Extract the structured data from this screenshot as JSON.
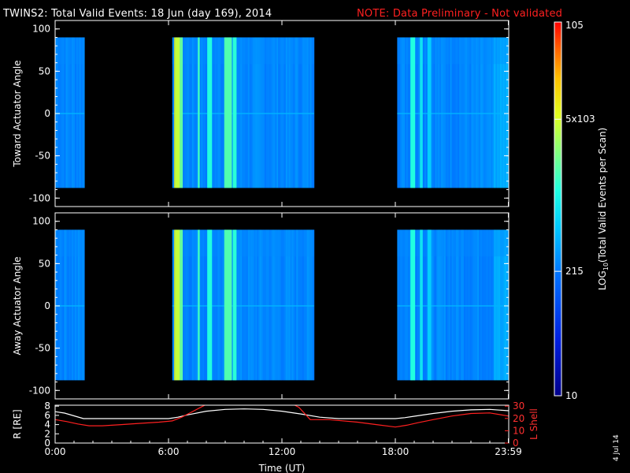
{
  "title": "TWINS2: Total Valid Events: 18 Jun (day 169), 2014",
  "note": "NOTE: Data Preliminary - Not validated",
  "date_stamp": "4 Jul 14",
  "chart_data": [
    {
      "type": "heatmap",
      "ylabel": "Toward Actuator Angle",
      "ylim": [
        -110,
        110
      ],
      "yticks": [
        -100,
        -50,
        0,
        50,
        100
      ],
      "xlim": [
        0,
        24
      ],
      "data_extent_y": [
        -88,
        90
      ],
      "data_segments_hours": [
        [
          0.0,
          1.55
        ],
        [
          6.2,
          13.7
        ],
        [
          18.1,
          24.0
        ]
      ],
      "hot_bands": [
        {
          "x": [
            6.3,
            6.35
          ],
          "level": 0.78
        },
        {
          "x": [
            6.35,
            6.6
          ],
          "level": 0.72
        },
        {
          "x": [
            6.6,
            6.75
          ],
          "level": 0.62
        },
        {
          "x": [
            7.55,
            7.65
          ],
          "level": 0.58
        },
        {
          "x": [
            8.05,
            8.3
          ],
          "level": 0.55
        },
        {
          "x": [
            8.95,
            9.35
          ],
          "level": 0.6
        },
        {
          "x": [
            9.4,
            9.6
          ],
          "level": 0.56
        },
        {
          "x": [
            18.8,
            19.05
          ],
          "level": 0.55
        },
        {
          "x": [
            19.3,
            19.45
          ],
          "level": 0.5
        },
        {
          "x": [
            19.7,
            19.9
          ],
          "level": 0.46
        }
      ]
    },
    {
      "type": "heatmap",
      "ylabel": "Away Actuator Angle",
      "ylim": [
        -110,
        110
      ],
      "yticks": [
        -100,
        -50,
        0,
        50,
        100
      ],
      "xlim": [
        0,
        24
      ],
      "data_extent_y": [
        -88,
        90
      ],
      "data_segments_hours": [
        [
          0.0,
          1.55
        ],
        [
          6.2,
          13.7
        ],
        [
          18.1,
          24.0
        ]
      ],
      "hot_bands": [
        {
          "x": [
            6.3,
            6.35
          ],
          "level": 0.78
        },
        {
          "x": [
            6.35,
            6.6
          ],
          "level": 0.72
        },
        {
          "x": [
            6.6,
            6.75
          ],
          "level": 0.62
        },
        {
          "x": [
            7.55,
            7.65
          ],
          "level": 0.58
        },
        {
          "x": [
            8.05,
            8.3
          ],
          "level": 0.55
        },
        {
          "x": [
            8.95,
            9.35
          ],
          "level": 0.6
        },
        {
          "x": [
            9.4,
            9.6
          ],
          "level": 0.56
        },
        {
          "x": [
            18.8,
            19.05
          ],
          "level": 0.55
        },
        {
          "x": [
            19.3,
            19.45
          ],
          "level": 0.5
        },
        {
          "x": [
            19.7,
            19.9
          ],
          "level": 0.46
        }
      ]
    },
    {
      "type": "line",
      "xlabel": "Time (UT)",
      "xticks": [
        0,
        6,
        12,
        18,
        23.98
      ],
      "xtick_labels": [
        "0:00",
        "6:00",
        "12:00",
        "18:00",
        "23:59"
      ],
      "y_left_label": "R [RE]",
      "y_left_ticks": [
        0,
        2,
        4,
        6,
        8
      ],
      "y_left_lim": [
        0,
        8.2
      ],
      "y_right_label": "L Shell",
      "y_right_ticks": [
        0,
        10,
        20,
        30
      ],
      "y_right_lim": [
        0,
        30.75
      ],
      "series": [
        {
          "axis": "left",
          "color": "#ffffff",
          "x": [
            0,
            0.5,
            1,
            1.5,
            2,
            3,
            4,
            5,
            6,
            6.5,
            7,
            8,
            9,
            10,
            11,
            12,
            13,
            14,
            15,
            16,
            17,
            18,
            18.5,
            19,
            20,
            21,
            22,
            23,
            24
          ],
          "y": [
            6.8,
            6.5,
            5.9,
            5.3,
            5.3,
            5.3,
            5.3,
            5.3,
            5.3,
            5.6,
            6.1,
            6.9,
            7.3,
            7.4,
            7.3,
            6.9,
            6.3,
            5.6,
            5.3,
            5.3,
            5.3,
            5.3,
            5.5,
            5.8,
            6.4,
            6.9,
            7.2,
            7.3,
            7.0
          ]
        },
        {
          "axis": "right",
          "color": "#ff2020",
          "x": [
            0,
            0.6,
            1.2,
            1.8,
            2.5,
            3.5,
            4.5,
            5.5,
            6.2,
            6.7,
            7.2,
            7.7,
            8.2,
            12.4,
            12.9,
            13.5,
            14.5,
            16,
            17,
            18,
            18.6,
            19.2,
            20,
            21,
            22,
            23,
            23.98
          ],
          "y": [
            19,
            17.5,
            15.5,
            14,
            14,
            15,
            16,
            17,
            18,
            21,
            25,
            29,
            33,
            33,
            29,
            19,
            19,
            17,
            15,
            13,
            14.5,
            16.5,
            19,
            22,
            24,
            24.5,
            22
          ]
        }
      ]
    }
  ],
  "colorbar": {
    "ylabel": "LOG10(Total Valid Events per Scan)",
    "tick_labels": [
      {
        "text": "10",
        "level": 0.0
      },
      {
        "text": "215",
        "level": 0.333
      },
      {
        "text": "5x103",
        "level": 0.74
      },
      {
        "text": "105",
        "level": 1.0
      }
    ]
  }
}
